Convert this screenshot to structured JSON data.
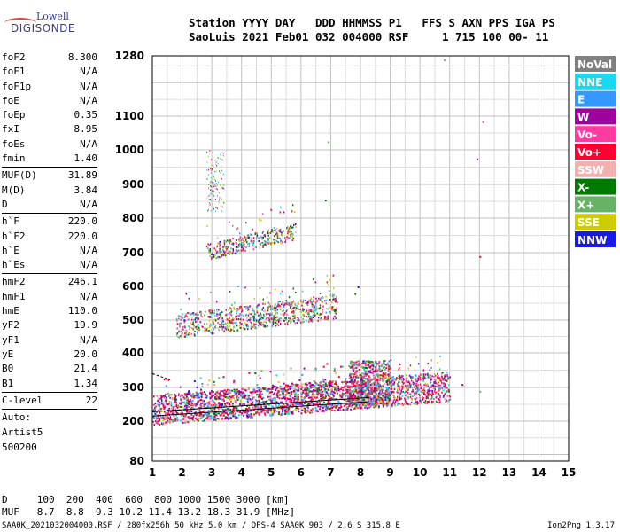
{
  "logo": {
    "line1": "Lowell",
    "line2": "DIGISONDE"
  },
  "header": {
    "line1": "Station YYYY DAY   DDD HHMMSS P1   FFS S AXN PPS IGA PS",
    "line2": "SaoLuis 2021 Feb01 032 004000 RSF     1 715 100 00- 11"
  },
  "params_group1": [
    {
      "name": "foF2",
      "value": "8.300"
    },
    {
      "name": "foF1",
      "value": "N/A"
    },
    {
      "name": "foF1p",
      "value": "N/A"
    },
    {
      "name": "foE",
      "value": "N/A"
    },
    {
      "name": "foEp",
      "value": "0.35"
    },
    {
      "name": "fxI",
      "value": "8.95"
    },
    {
      "name": "foEs",
      "value": "N/A"
    },
    {
      "name": "fmin",
      "value": "1.40"
    }
  ],
  "params_group2": [
    {
      "name": "MUF(D)",
      "value": "31.89"
    },
    {
      "name": "M(D)",
      "value": "3.84"
    },
    {
      "name": "D",
      "value": "N/A"
    }
  ],
  "params_group3": [
    {
      "name": "h`F",
      "value": "220.0"
    },
    {
      "name": "h`F2",
      "value": "220.0"
    },
    {
      "name": "h`E",
      "value": "N/A"
    },
    {
      "name": "h`Es",
      "value": "N/A"
    }
  ],
  "params_group4": [
    {
      "name": "hmF2",
      "value": "246.1"
    },
    {
      "name": "hmF1",
      "value": "N/A"
    },
    {
      "name": "hmE",
      "value": "110.0"
    },
    {
      "name": "yF2",
      "value": "19.9"
    },
    {
      "name": "yF1",
      "value": "N/A"
    },
    {
      "name": "yE",
      "value": "20.0"
    },
    {
      "name": "B0",
      "value": "21.4"
    },
    {
      "name": "B1",
      "value": "1.34"
    }
  ],
  "c_level": {
    "name": "C-level",
    "value": "22"
  },
  "autoscale_text": [
    "Auto:",
    "Artist5",
    "500200"
  ],
  "bottom_table": {
    "d_row": "D     100  200  400  600  800 1000 1500 3000 [km]",
    "muf_row": "MUF   8.7  8.8  9.3 10.2 11.4 13.2 18.3 31.9 [MHz]"
  },
  "footer": "SAA0K_2021032004000.RSF / 280fx256h 50 kHz 5.0 km / DPS-4 SAA0K 903 / 2.6 S 315.8 E",
  "version": "Ion2Png 1.3.17",
  "legend": [
    {
      "label": "NoVal",
      "color": "#808080"
    },
    {
      "label": "NNE",
      "color": "#19d9f2"
    },
    {
      "label": "E",
      "color": "#3399ff"
    },
    {
      "label": "W",
      "color": "#a000a0"
    },
    {
      "label": "Vo-",
      "color": "#ff3aa0"
    },
    {
      "label": "Vo+",
      "color": "#ff0033"
    },
    {
      "label": "SSW",
      "color": "#f2b0b0"
    },
    {
      "label": "X-",
      "color": "#007a00"
    },
    {
      "label": "X+",
      "color": "#66b366"
    },
    {
      "label": "SSE",
      "color": "#cccc00"
    },
    {
      "label": "NNW",
      "color": "#1a1ae6"
    }
  ],
  "chart_data": {
    "type": "scatter",
    "xlabel": "",
    "ylabel": "",
    "xlim": [
      1,
      15
    ],
    "ylim": [
      80,
      1280
    ],
    "x_ticks": [
      "1",
      "2",
      "3",
      "4",
      "5",
      "6",
      "7",
      "8",
      "9",
      "10",
      "11",
      "12",
      "13",
      "14",
      "15"
    ],
    "y_ticks": [
      "80",
      "200",
      "300",
      "400",
      "500",
      "600",
      "700",
      "800",
      "900",
      "1000",
      "1100",
      "1280"
    ],
    "y_tick_values": [
      80,
      200,
      300,
      400,
      500,
      600,
      700,
      800,
      900,
      1000,
      1100,
      1280
    ],
    "grid": true,
    "echo_traces": [
      {
        "name": "F2 1st hop",
        "x_range": [
          1.0,
          11.0
        ],
        "h_start": 230,
        "h_end": 300
      },
      {
        "name": "F2 2nd hop",
        "x_range": [
          1.8,
          7.2
        ],
        "h_start": 480,
        "h_end": 540
      },
      {
        "name": "F2 3rd hop",
        "x_range": [
          2.8,
          5.8
        ],
        "h_start": 700,
        "h_end": 760
      }
    ],
    "profile_lines": [
      {
        "x": [
          1.0,
          8.3
        ],
        "y": [
          215,
          258
        ]
      },
      {
        "x": [
          1.0,
          8.3
        ],
        "y": [
          228,
          270
        ]
      }
    ]
  }
}
